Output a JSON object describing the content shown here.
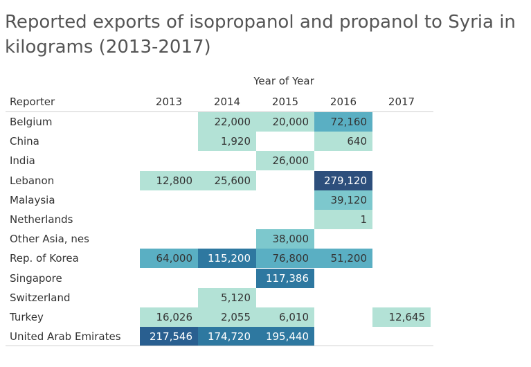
{
  "chart_data": {
    "type": "heatmap",
    "title": "Reported exports of isopropanol and propanol to Syria in kilograms (2013-2017)",
    "column_group_label": "Year of Year",
    "row_header": "Reporter",
    "columns": [
      "2013",
      "2014",
      "2015",
      "2016",
      "2017"
    ],
    "rows": [
      {
        "reporter": "Belgium",
        "values": [
          null,
          22000,
          20000,
          72160,
          null
        ]
      },
      {
        "reporter": "China",
        "values": [
          null,
          1920,
          null,
          640,
          null
        ]
      },
      {
        "reporter": "India",
        "values": [
          null,
          null,
          26000,
          null,
          null
        ]
      },
      {
        "reporter": "Lebanon",
        "values": [
          12800,
          25600,
          null,
          279120,
          null
        ]
      },
      {
        "reporter": "Malaysia",
        "values": [
          null,
          null,
          null,
          39120,
          null
        ]
      },
      {
        "reporter": "Netherlands",
        "values": [
          null,
          null,
          null,
          1,
          null
        ]
      },
      {
        "reporter": "Other Asia, nes",
        "values": [
          null,
          null,
          38000,
          null,
          null
        ]
      },
      {
        "reporter": "Rep. of Korea",
        "values": [
          64000,
          115200,
          76800,
          51200,
          null
        ]
      },
      {
        "reporter": "Singapore",
        "values": [
          null,
          null,
          117386,
          null,
          null
        ]
      },
      {
        "reporter": "Switzerland",
        "values": [
          null,
          5120,
          null,
          null,
          null
        ]
      },
      {
        "reporter": "Turkey",
        "values": [
          16026,
          2055,
          6010,
          null,
          12645
        ]
      },
      {
        "reporter": "United Arab Emirates",
        "values": [
          217546,
          174720,
          195440,
          null,
          null
        ]
      }
    ],
    "color_scale": [
      "#b3e2d6",
      "#2d4f7c"
    ]
  }
}
